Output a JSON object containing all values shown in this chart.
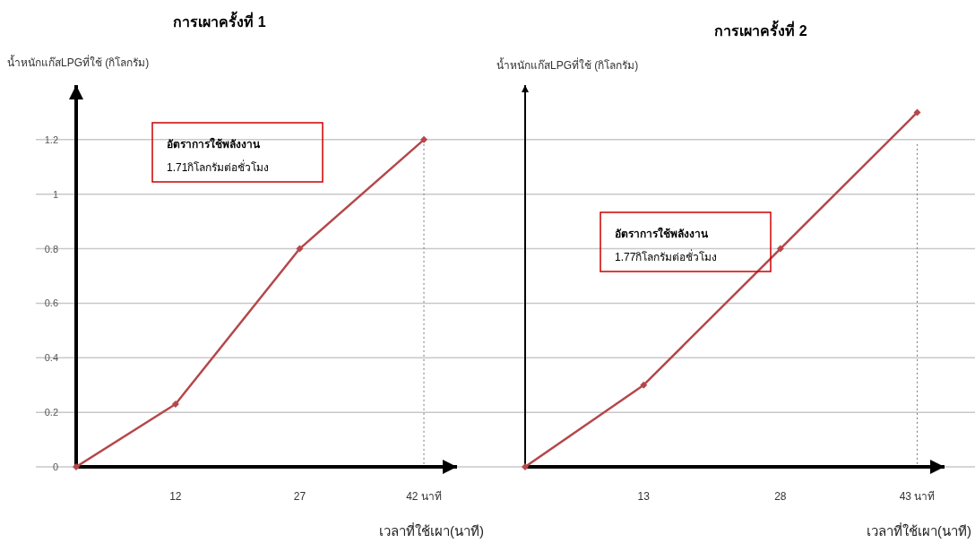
{
  "chart_data": [
    {
      "type": "line",
      "title": "การเผาครั้งที่  1",
      "ylabel": "น้ำหนักแก๊สLPGที่ใช้ (กิโลกรัม)",
      "xlabel": "เวลาที่ใช้เผา(นาที)",
      "annotations": [
        "อัตราการใช้พลังงาน\n1.71กิโลกรัมต่อชั่วโมง"
      ],
      "x": [
        0,
        12,
        27,
        42
      ],
      "series": [
        {
          "color": "#b5474a",
          "values": [
            0,
            0.23,
            0.8,
            1.2
          ]
        }
      ],
      "xlim": [
        0,
        46
      ],
      "xticks": [
        12,
        27,
        {
          "value": 42,
          "label": "42 นาที"
        }
      ],
      "ylim": [
        0,
        1.4
      ],
      "yticks": [
        0,
        0.2,
        0.4,
        0.6,
        0.8,
        1,
        1.2
      ],
      "ref_lines": [
        {
          "axis": "x",
          "value": 42,
          "line_style": "dotted"
        }
      ],
      "grid": "y",
      "marker": "diamond",
      "line_style": "solid"
    },
    {
      "type": "line",
      "title": "การเผาครั้งที่  2",
      "ylabel": "น้ำหนักแก๊สLPGที่ใช้ (กิโลกรัม)",
      "xlabel": "เวลาที่ใช้เผา(นาที)",
      "annotations": [
        "อัตราการใช้พลังงาน\n1.77กิโลกรัมต่อชั่วโมง"
      ],
      "x": [
        0,
        13,
        28,
        43
      ],
      "series": [
        {
          "color": "#b5474a",
          "values": [
            0,
            0.3,
            0.8,
            1.3
          ]
        }
      ],
      "xlim": [
        0,
        46
      ],
      "xticks": [
        13,
        28,
        {
          "value": 43,
          "label": "43 นาที"
        }
      ],
      "ylim": [
        0,
        1.4
      ],
      "yticks": [
        {
          "value": 0,
          "label": null
        },
        {
          "value": 0.2,
          "label": null
        },
        {
          "value": 0.4,
          "label": null
        },
        {
          "value": 0.6,
          "label": null
        },
        {
          "value": 0.8,
          "label": null
        },
        {
          "value": 1,
          "label": null
        },
        {
          "value": 1.2,
          "label": null
        }
      ],
      "ref_lines": [
        {
          "axis": "x",
          "value": 43,
          "line_style": "dotted"
        }
      ],
      "grid": "y",
      "marker": "diamond",
      "line_style": "solid",
      "tick_labels": "x"
    }
  ]
}
